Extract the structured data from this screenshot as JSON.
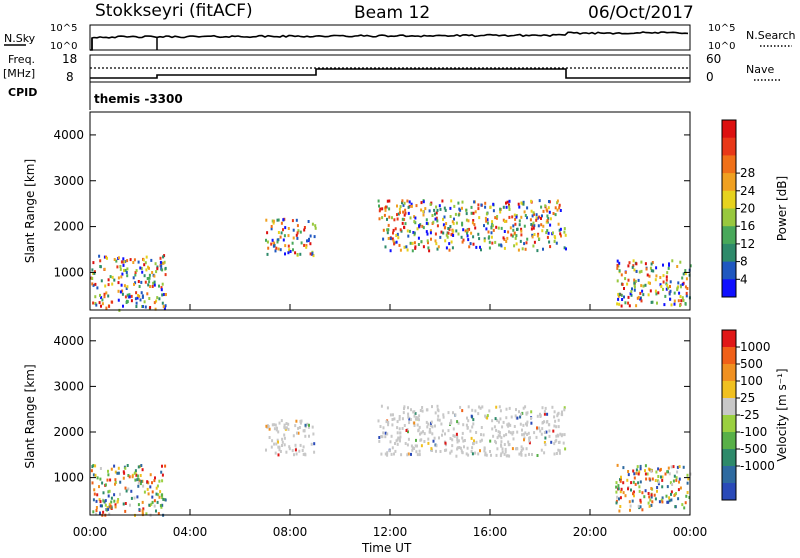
{
  "header": {
    "radar": "Stokkseyri (fitACF)",
    "beam": "Beam 12",
    "date": "06/Oct/2017"
  },
  "noise_panel": {
    "left_label": "N.Sky",
    "left_ticks": [
      "10^5",
      "10^0"
    ],
    "right_label": "N.Search",
    "right_ticks": [
      "10^5",
      "10^0"
    ]
  },
  "freq_panel": {
    "left_label_line1": "Freq.",
    "left_label_line2": "[MHz]",
    "left_ticks": [
      "18",
      "8"
    ],
    "right_label": "Nave",
    "right_ticks": [
      "60",
      "0"
    ],
    "cpid_label": "CPID",
    "cpid_value": "themis  -3300"
  },
  "chart_data": [
    {
      "type": "heatmap",
      "title": "",
      "quantity": "Power",
      "xlabel": "Time UT",
      "ylabel": "Slant Range [km]",
      "xlim": [
        "00:00",
        "24:00"
      ],
      "ylim": [
        180,
        4500
      ],
      "x_ticks": [
        "00:00",
        "04:00",
        "08:00",
        "12:00",
        "16:00",
        "20:00",
        "00:00"
      ],
      "y_ticks": [
        1000,
        2000,
        3000,
        4000
      ],
      "colorbar": {
        "label": "Power [dB]",
        "tick_labels": [
          "4",
          "8",
          "12",
          "16",
          "20",
          "24",
          "28"
        ],
        "colors": [
          "#1010ff",
          "#2058c0",
          "#2e8a6a",
          "#48a85a",
          "#98c83e",
          "#e6d21e",
          "#f0a020",
          "#f07018",
          "#e83818",
          "#dc1010"
        ]
      },
      "features": [
        {
          "t_start": 0.0,
          "t_end": 3.0,
          "range_min": 200,
          "range_max": 1400,
          "level": "mixed 8-28 dB"
        },
        {
          "t_start": 7.0,
          "t_end": 9.0,
          "range_min": 1400,
          "range_max": 2200,
          "level": "8-24 dB"
        },
        {
          "t_start": 11.5,
          "t_end": 19.0,
          "range_min": 1500,
          "range_max": 2600,
          "level": "8-24 dB"
        },
        {
          "t_start": 21.0,
          "t_end": 24.0,
          "range_min": 300,
          "range_max": 1300,
          "level": "12-28 dB"
        }
      ]
    },
    {
      "type": "heatmap",
      "title": "",
      "quantity": "Velocity",
      "xlabel": "Time UT",
      "ylabel": "Slant Range [km]",
      "xlim": [
        "00:00",
        "24:00"
      ],
      "ylim": [
        180,
        4500
      ],
      "x_ticks": [
        "00:00",
        "04:00",
        "08:00",
        "12:00",
        "16:00",
        "20:00",
        "00:00"
      ],
      "y_ticks": [
        1000,
        2000,
        3000,
        4000
      ],
      "colorbar": {
        "label": "Velocity [m s⁻¹]",
        "tick_labels": [
          "1000",
          "500",
          "100",
          "25",
          "-25",
          "-100",
          "-500",
          "-1000"
        ],
        "colors": [
          "#2a4ab8",
          "#2e6aa0",
          "#2e8a6a",
          "#58b048",
          "#9ad040",
          "#c8c8c8",
          "#f0c020",
          "#f09020",
          "#f06018",
          "#e01818"
        ]
      },
      "features": [
        {
          "t_start": 0.0,
          "t_end": 3.0,
          "range_min": 200,
          "range_max": 1300,
          "velocity": "mixed ±500"
        },
        {
          "t_start": 7.0,
          "t_end": 9.0,
          "range_min": 1500,
          "range_max": 2300,
          "velocity": "-25 to 25"
        },
        {
          "t_start": 11.5,
          "t_end": 19.0,
          "range_min": 1500,
          "range_max": 2600,
          "velocity": "-25 to 25"
        },
        {
          "t_start": 21.0,
          "t_end": 24.0,
          "range_min": 300,
          "range_max": 1300,
          "velocity": "mixed -1000 to 1000"
        }
      ]
    }
  ]
}
